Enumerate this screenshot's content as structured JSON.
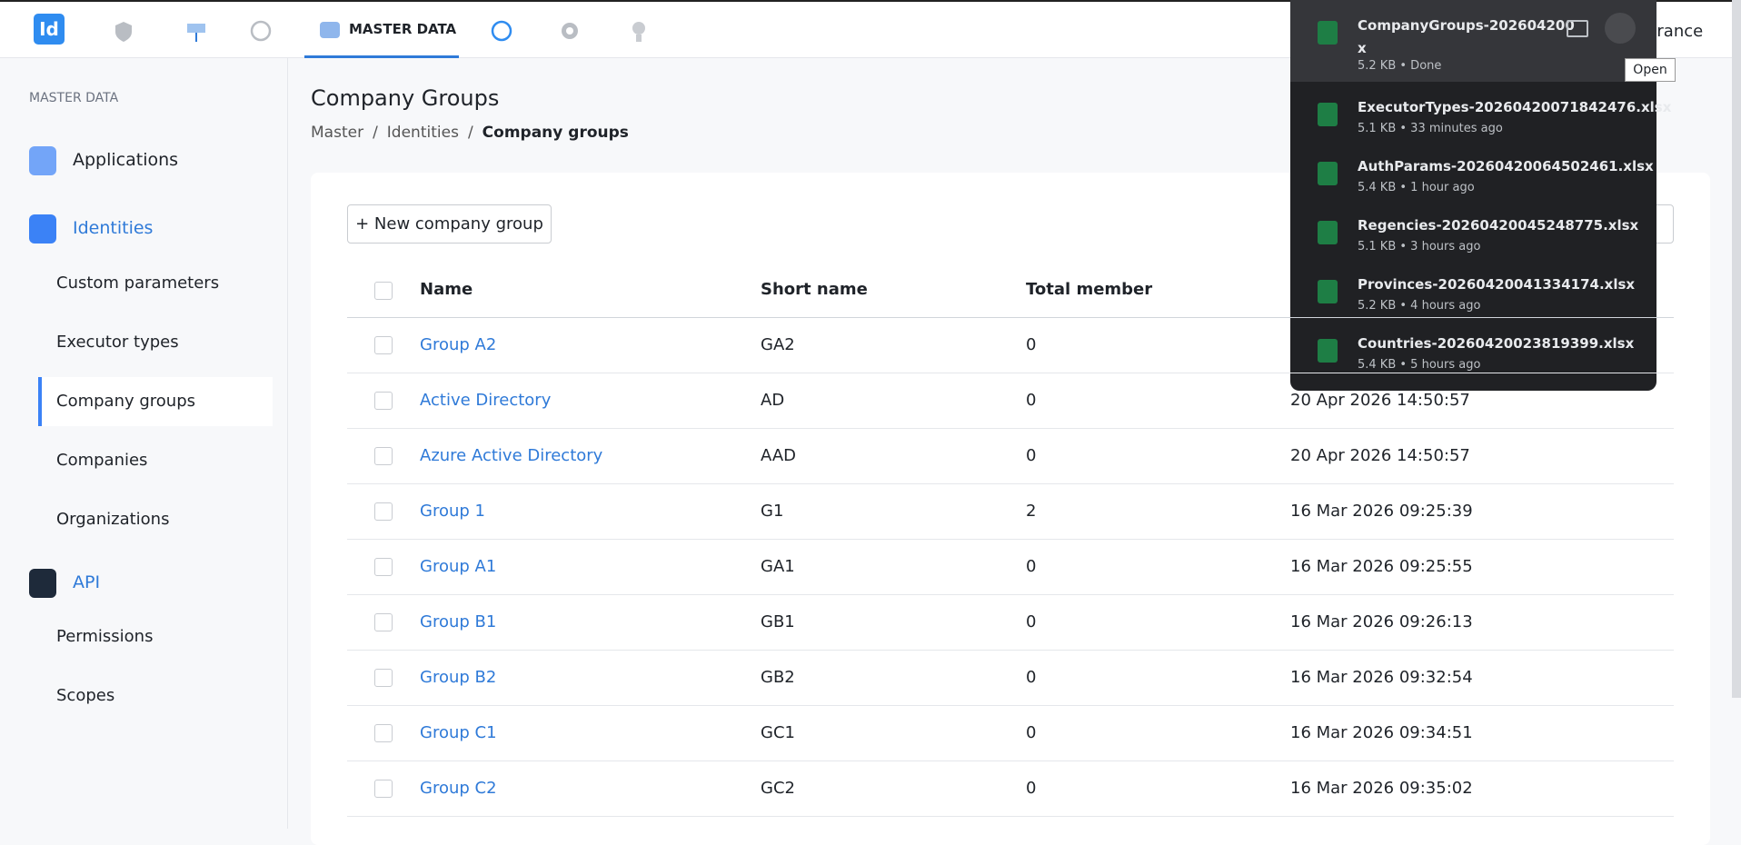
{
  "nav": {
    "logo": "Id",
    "active_tab": "MASTER DATA",
    "right_text": "urance"
  },
  "sidebar": {
    "section": "MASTER DATA",
    "groups": [
      {
        "label": "Applications",
        "items": []
      },
      {
        "label": "Identities",
        "items": [
          "Custom parameters",
          "Executor types",
          "Company groups",
          "Companies",
          "Organizations"
        ]
      },
      {
        "label": "API",
        "items": [
          "Permissions",
          "Scopes"
        ]
      }
    ]
  },
  "page": {
    "title": "Company Groups",
    "breadcrumb": [
      "Master",
      "Identities",
      "Company groups"
    ],
    "new_button": "+ New company group"
  },
  "table": {
    "headers": [
      "Name",
      "Short name",
      "Total member"
    ],
    "rows": [
      [
        "Group A2",
        "GA2",
        "0",
        ""
      ],
      [
        "Active Directory",
        "AD",
        "0",
        "20 Apr 2026 14:50:57"
      ],
      [
        "Azure Active Directory",
        "AAD",
        "0",
        "20 Apr 2026 14:50:57"
      ],
      [
        "Group 1",
        "G1",
        "2",
        "16 Mar 2026 09:25:39"
      ],
      [
        "Group A1",
        "GA1",
        "0",
        "16 Mar 2026 09:25:55"
      ],
      [
        "Group B1",
        "GB1",
        "0",
        "16 Mar 2026 09:26:13"
      ],
      [
        "Group B2",
        "GB2",
        "0",
        "16 Mar 2026 09:32:54"
      ],
      [
        "Group C1",
        "GC1",
        "0",
        "16 Mar 2026 09:34:51"
      ],
      [
        "Group C2",
        "GC2",
        "0",
        "16 Mar 2026 09:35:02"
      ]
    ]
  },
  "downloads": {
    "items": [
      {
        "name_lines": [
          "CompanyGroups-202604200",
          "x"
        ],
        "info": "5.2 KB • Done"
      },
      {
        "name_lines": [
          "ExecutorTypes-20260420071842476.xlsx"
        ],
        "info": "5.1 KB • 33 minutes ago"
      },
      {
        "name_lines": [
          "AuthParams-20260420064502461.xlsx"
        ],
        "info": "5.4 KB • 1 hour ago"
      },
      {
        "name_lines": [
          "Regencies-20260420045248775.xlsx"
        ],
        "info": "5.1 KB • 3 hours ago"
      },
      {
        "name_lines": [
          "Provinces-20260420041334174.xlsx"
        ],
        "info": "5.2 KB • 4 hours ago"
      },
      {
        "name_lines": [
          "Countries-20260420023819399.xlsx"
        ],
        "info": "5.4 KB • 5 hours ago"
      }
    ],
    "tooltip": "Open"
  }
}
